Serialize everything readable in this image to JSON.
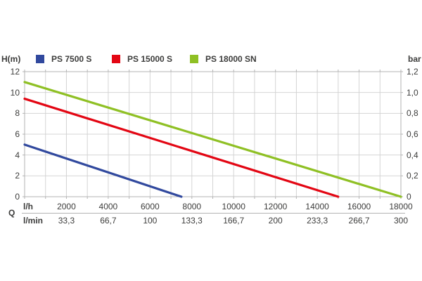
{
  "chart_data": {
    "type": "line",
    "title": "",
    "ylabel_left": "H(m)",
    "ylabel_right": "bar",
    "xlabel": "Q",
    "x_axis": {
      "min": 0,
      "max": 18000,
      "minor_step": 1000,
      "label_step": 2000
    },
    "y_axis_left": {
      "min": 0,
      "max": 12,
      "grid_step": 2,
      "ticks": [
        12,
        10,
        8,
        6,
        4,
        2,
        0
      ]
    },
    "y_axis_right": {
      "min": 0,
      "max": 1.2,
      "ticks": [
        "1,2",
        "1,0",
        "0,8",
        "0,6",
        "0,4",
        "0,2",
        "0"
      ]
    },
    "x_tick_rows": [
      {
        "unit": "l/h",
        "values": [
          "2000",
          "4000",
          "6000",
          "8000",
          "10000",
          "12000",
          "14000",
          "16000",
          "18000"
        ]
      },
      {
        "unit": "l/min",
        "values": [
          "33,3",
          "66,7",
          "100",
          "133,3",
          "166,7",
          "200",
          "233,3",
          "266,7",
          "300"
        ]
      }
    ],
    "series": [
      {
        "name": "PS 7500 S",
        "color": "#31499e",
        "points": [
          [
            0,
            5.0
          ],
          [
            7500,
            0
          ]
        ]
      },
      {
        "name": "PS 15000 S",
        "color": "#e30613",
        "points": [
          [
            0,
            9.4
          ],
          [
            15000,
            0
          ]
        ]
      },
      {
        "name": "PS 18000 SN",
        "color": "#8fc024",
        "points": [
          [
            0,
            11.0
          ],
          [
            18000,
            0
          ]
        ]
      }
    ],
    "legend_position": "top",
    "grid": {
      "on": true,
      "color": "#d4d4d4",
      "border_color": "#b3b3b3"
    },
    "text_color": "#3c3c3b"
  }
}
